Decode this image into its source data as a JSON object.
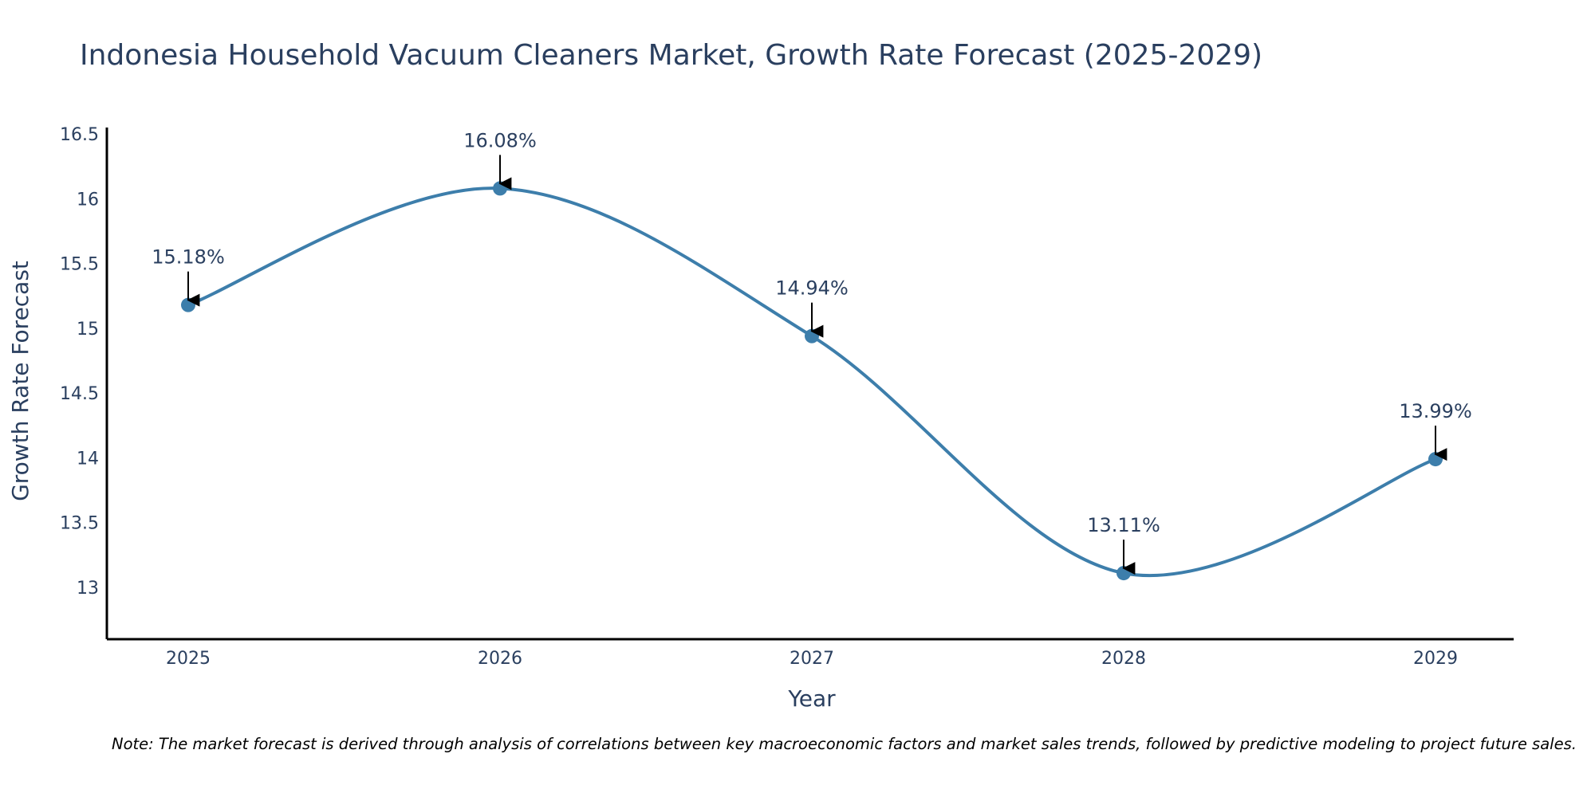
{
  "chart_data": {
    "type": "line",
    "title": "Indonesia Household Vacuum Cleaners Market, Growth Rate Forecast (2025-2029)",
    "xlabel": "Year",
    "ylabel": "Growth Rate Forecast",
    "categories": [
      "2025",
      "2026",
      "2027",
      "2028",
      "2029"
    ],
    "values": [
      15.18,
      16.08,
      14.94,
      13.11,
      13.99
    ],
    "data_labels": [
      "15.18%",
      "16.08%",
      "14.94%",
      "13.11%",
      "13.99%"
    ],
    "ylim": [
      12.6,
      16.55
    ],
    "yticks": [
      "13",
      "13.5",
      "14",
      "14.5",
      "15",
      "15.5",
      "16",
      "16.5"
    ],
    "grid": false,
    "line_shape": "spline",
    "colors": {
      "line": "#3d7eab",
      "marker": "#3d7eab",
      "arrow": "#000000",
      "axis": "#000000",
      "text": "#2a3f5f"
    }
  },
  "note": "Note: The market forecast is derived through analysis of correlations between key macroeconomic factors and market sales trends, followed by predictive modeling to project future sales."
}
